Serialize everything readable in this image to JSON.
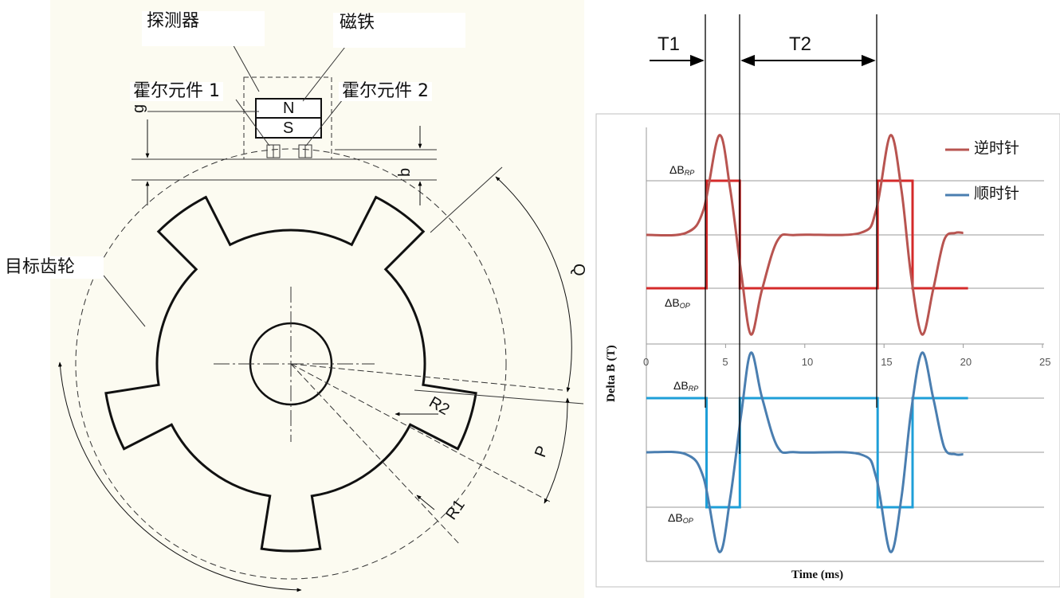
{
  "gear_diagram": {
    "labels": {
      "detector": "探测器",
      "magnet": "磁铁",
      "hall1": "霍尔元件 1",
      "hall2": "霍尔元件 2",
      "target_gear": "目标齿轮",
      "north": "N",
      "south": "S"
    },
    "dimensions": {
      "g": "g",
      "b": "b",
      "Q": "Q",
      "P": "P",
      "R1": "R1",
      "R2": "R2"
    },
    "tooth_count": 5
  },
  "timing": {
    "t1": "T1",
    "t2": "T2"
  },
  "chart_data": {
    "type": "line",
    "title": "",
    "xlabel": "Time (ms)",
    "ylabel": "Delta B (T)",
    "xlim": [
      0,
      25
    ],
    "xticks": [
      "0",
      "5",
      "10",
      "15",
      "20",
      "25"
    ],
    "threshold_labels": {
      "rp_top": "ΔB",
      "rp_top_sub": "RP",
      "op_top": "ΔB",
      "op_top_sub": "OP",
      "rp_bottom": "ΔB",
      "rp_bottom_sub": "RP",
      "op_bottom": "ΔB",
      "op_bottom_sub": "OP"
    },
    "series": [
      {
        "name": "逆时针",
        "color": "#b85450",
        "digital_color": "#d42a2a",
        "analog": [
          [
            0,
            0
          ],
          [
            2.5,
            0.02
          ],
          [
            3.6,
            0.25
          ],
          [
            4.6,
            1.0
          ],
          [
            5.3,
            0.45
          ],
          [
            6.0,
            -0.4
          ],
          [
            6.6,
            -1.0
          ],
          [
            7.3,
            -0.55
          ],
          [
            8.3,
            -0.05
          ],
          [
            9.5,
            0
          ],
          [
            13.5,
            0.02
          ],
          [
            14.5,
            0.25
          ],
          [
            15.4,
            1.0
          ],
          [
            16.1,
            0.45
          ],
          [
            16.7,
            -0.4
          ],
          [
            17.4,
            -1.0
          ],
          [
            18.1,
            -0.55
          ],
          [
            18.8,
            -0.05
          ],
          [
            19.5,
            0.02
          ],
          [
            20,
            0.02
          ]
        ],
        "digital": [
          [
            0,
            -1
          ],
          [
            3.8,
            -1
          ],
          [
            3.8,
            1
          ],
          [
            5.9,
            1
          ],
          [
            5.9,
            -1
          ],
          [
            14.6,
            -1
          ],
          [
            14.6,
            1
          ],
          [
            16.8,
            1
          ],
          [
            16.8,
            -1
          ],
          [
            20.3,
            -1
          ]
        ]
      },
      {
        "name": "顺时针",
        "color": "#4a7eb0",
        "digital_color": "#1e9fd8",
        "analog": [
          [
            0,
            0
          ],
          [
            2.5,
            -0.02
          ],
          [
            3.6,
            -0.25
          ],
          [
            4.6,
            -1.0
          ],
          [
            5.3,
            -0.45
          ],
          [
            6.0,
            0.4
          ],
          [
            6.6,
            1.0
          ],
          [
            7.3,
            0.55
          ],
          [
            8.3,
            0.05
          ],
          [
            9.5,
            0
          ],
          [
            13.5,
            -0.02
          ],
          [
            14.5,
            -0.25
          ],
          [
            15.4,
            -1.0
          ],
          [
            16.1,
            -0.45
          ],
          [
            16.7,
            0.4
          ],
          [
            17.4,
            1.0
          ],
          [
            18.1,
            0.55
          ],
          [
            18.8,
            0.05
          ],
          [
            19.5,
            -0.02
          ],
          [
            20,
            -0.02
          ]
        ],
        "digital": [
          [
            0,
            1
          ],
          [
            3.8,
            1
          ],
          [
            3.8,
            -1
          ],
          [
            5.9,
            -1
          ],
          [
            5.9,
            1
          ],
          [
            14.6,
            1
          ],
          [
            14.6,
            -1
          ],
          [
            16.8,
            -1
          ],
          [
            16.8,
            1
          ],
          [
            20.3,
            1
          ]
        ]
      }
    ]
  }
}
